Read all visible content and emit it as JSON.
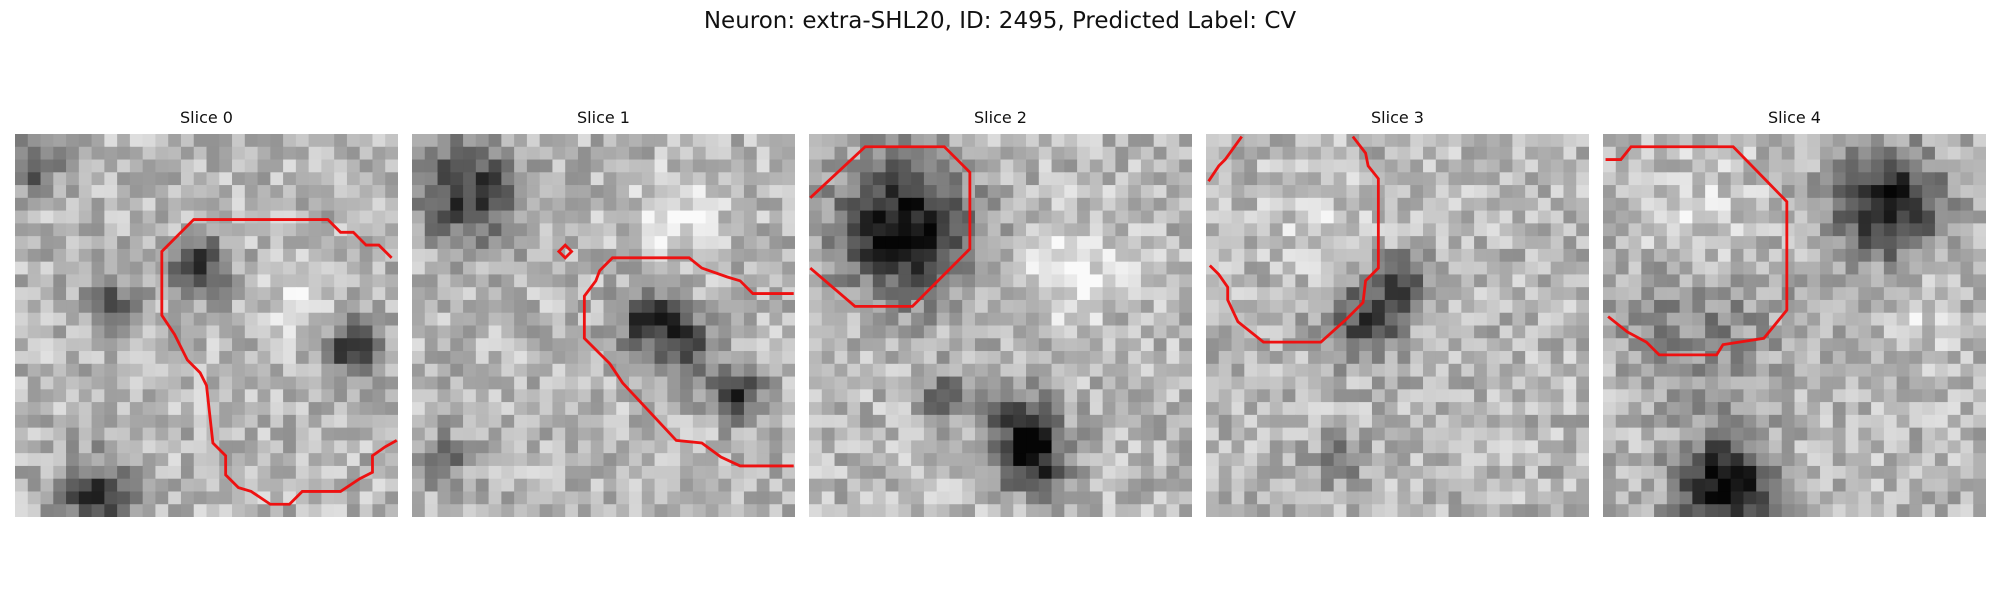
{
  "title": "Neuron: extra-SHL20, ID: 2495, Predicted Label: CV",
  "panels": [
    {
      "title": "Slice 0"
    },
    {
      "title": "Slice 1"
    },
    {
      "title": "Slice 2"
    },
    {
      "title": "Slice 3"
    },
    {
      "title": "Slice 4"
    }
  ]
}
